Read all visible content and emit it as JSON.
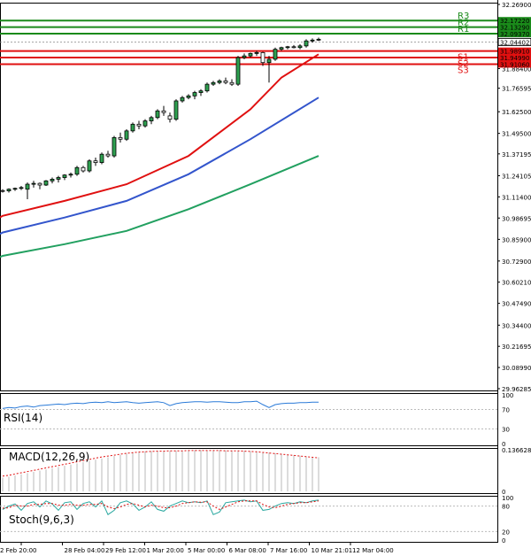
{
  "chart_data": {
    "type": "candlestick",
    "main": {
      "y_ticks": [
        "32.26900",
        "32.12500",
        "31.98400",
        "31.88400",
        "31.76595",
        "31.62500",
        "31.49500",
        "31.37195",
        "31.24105",
        "31.11400",
        "30.98695",
        "30.85900",
        "30.72900",
        "30.60210",
        "30.47490",
        "30.34400",
        "30.21695",
        "30.08990",
        "29.96285"
      ],
      "ylim": [
        29.96285,
        32.269
      ],
      "current_price": "32.04402",
      "levels": [
        {
          "name": "R3",
          "value": "32.17220",
          "color": "#1a8a1a"
        },
        {
          "name": "R2",
          "value": "32.13290",
          "color": "#1a8a1a"
        },
        {
          "name": "R1",
          "value": "32.09370",
          "color": "#1a8a1a"
        },
        {
          "name": "S1",
          "value": "31.98910",
          "color": "#e01010"
        },
        {
          "name": "S2",
          "value": "31.94990",
          "color": "#e01010"
        },
        {
          "name": "S3",
          "value": "31.91060",
          "color": "#e01010"
        }
      ],
      "candles": [
        [
          31.152,
          31.16,
          31.14,
          31.15
        ],
        [
          31.15,
          31.165,
          31.14,
          31.16
        ],
        [
          31.16,
          31.17,
          31.15,
          31.165
        ],
        [
          31.165,
          31.18,
          31.155,
          31.17
        ],
        [
          31.16,
          31.2,
          31.1,
          31.19
        ],
        [
          31.19,
          31.21,
          31.17,
          31.195
        ],
        [
          31.195,
          31.2,
          31.16,
          31.185
        ],
        [
          31.185,
          31.215,
          31.18,
          31.21
        ],
        [
          31.21,
          31.23,
          31.195,
          31.22
        ],
        [
          31.22,
          31.24,
          31.2,
          31.23
        ],
        [
          31.23,
          31.25,
          31.215,
          31.245
        ],
        [
          31.245,
          31.26,
          31.23,
          31.25
        ],
        [
          31.25,
          31.3,
          31.24,
          31.29
        ],
        [
          31.29,
          31.3,
          31.26,
          31.27
        ],
        [
          31.27,
          31.34,
          31.26,
          31.33
        ],
        [
          31.33,
          31.35,
          31.3,
          31.32
        ],
        [
          31.32,
          31.38,
          31.31,
          31.37
        ],
        [
          31.37,
          31.39,
          31.35,
          31.36
        ],
        [
          31.36,
          31.48,
          31.35,
          31.47
        ],
        [
          31.47,
          31.5,
          31.44,
          31.46
        ],
        [
          31.46,
          31.52,
          31.45,
          31.51
        ],
        [
          31.51,
          31.56,
          31.5,
          31.55
        ],
        [
          31.55,
          31.57,
          31.52,
          31.54
        ],
        [
          31.54,
          31.58,
          31.53,
          31.57
        ],
        [
          31.57,
          31.6,
          31.55,
          31.59
        ],
        [
          31.59,
          31.64,
          31.58,
          31.63
        ],
        [
          31.63,
          31.66,
          31.6,
          31.62
        ],
        [
          31.6,
          31.62,
          31.56,
          31.58
        ],
        [
          31.58,
          31.7,
          31.57,
          31.69
        ],
        [
          31.69,
          31.72,
          31.68,
          31.71
        ],
        [
          31.71,
          31.73,
          31.7,
          31.72
        ],
        [
          31.72,
          31.75,
          31.7,
          31.74
        ],
        [
          31.74,
          31.76,
          31.72,
          31.75
        ],
        [
          31.75,
          31.8,
          31.74,
          31.79
        ],
        [
          31.79,
          31.81,
          31.78,
          31.8
        ],
        [
          31.8,
          31.82,
          31.79,
          31.81
        ],
        [
          31.81,
          31.83,
          31.79,
          31.8
        ],
        [
          31.8,
          31.82,
          31.78,
          31.79
        ],
        [
          31.79,
          31.96,
          31.78,
          31.95
        ],
        [
          31.95,
          31.975,
          31.94,
          31.96
        ],
        [
          31.96,
          31.98,
          31.95,
          31.975
        ],
        [
          31.975,
          31.99,
          31.96,
          31.98
        ],
        [
          31.98,
          31.985,
          31.9,
          31.92
        ],
        [
          31.92,
          31.96,
          31.8,
          31.94
        ],
        [
          31.94,
          32.01,
          31.93,
          32.0
        ],
        [
          32.0,
          32.015,
          31.99,
          32.01
        ],
        [
          32.01,
          32.02,
          32.0,
          32.015
        ],
        [
          32.015,
          32.025,
          32.005,
          32.01
        ],
        [
          32.01,
          32.03,
          32.0,
          32.02
        ],
        [
          32.02,
          32.06,
          32.01,
          32.05
        ],
        [
          32.05,
          32.065,
          32.04,
          32.055
        ],
        [
          32.055,
          32.07,
          32.05,
          32.06
        ]
      ],
      "ma_fast": {
        "color": "#e01010",
        "points": [
          [
            0,
            31.0
          ],
          [
            10,
            31.09
          ],
          [
            20,
            31.19
          ],
          [
            30,
            31.36
          ],
          [
            40,
            31.64
          ],
          [
            45,
            31.83
          ],
          [
            51,
            31.97
          ]
        ]
      },
      "ma_mid": {
        "color": "#3355cc",
        "points": [
          [
            0,
            30.9
          ],
          [
            10,
            30.99
          ],
          [
            20,
            31.09
          ],
          [
            30,
            31.25
          ],
          [
            40,
            31.46
          ],
          [
            51,
            31.71
          ]
        ]
      },
      "ma_slow": {
        "color": "#22a060",
        "points": [
          [
            0,
            30.76
          ],
          [
            10,
            30.83
          ],
          [
            20,
            30.91
          ],
          [
            30,
            31.04
          ],
          [
            40,
            31.19
          ],
          [
            51,
            31.36
          ]
        ]
      }
    },
    "rsi": {
      "label": "RSI(14)",
      "ticks": [
        "100",
        "70",
        "30",
        "0"
      ],
      "ylim": [
        0,
        100
      ],
      "color": "#2a7ad8",
      "values": [
        72,
        74,
        73,
        76,
        77,
        75,
        78,
        79,
        80,
        81,
        80,
        82,
        83,
        82,
        84,
        85,
        84,
        86,
        84,
        85,
        86,
        84,
        83,
        84,
        85,
        86,
        84,
        78,
        82,
        84,
        85,
        86,
        86,
        85,
        86,
        86,
        85,
        84,
        84,
        86,
        86,
        87,
        80,
        74,
        80,
        82,
        83,
        83,
        84,
        84,
        85,
        85
      ]
    },
    "macd": {
      "label": "MACD(12,26,9)",
      "ticks": [
        "0.136628",
        "0"
      ],
      "ylim": [
        0,
        0.136628
      ],
      "signal_color": "#e01010",
      "hist": [
        0.045,
        0.048,
        0.052,
        0.056,
        0.06,
        0.064,
        0.068,
        0.072,
        0.076,
        0.08,
        0.084,
        0.088,
        0.092,
        0.096,
        0.1,
        0.104,
        0.108,
        0.112,
        0.116,
        0.12,
        0.124,
        0.127,
        0.129,
        0.131,
        0.132,
        0.133,
        0.133,
        0.133,
        0.133,
        0.134,
        0.135,
        0.135,
        0.135,
        0.135,
        0.135,
        0.135,
        0.134,
        0.134,
        0.134,
        0.133,
        0.132,
        0.131,
        0.129,
        0.127,
        0.125,
        0.123,
        0.121,
        0.119,
        0.117,
        0.115,
        0.113,
        0.112
      ],
      "signal": [
        0.05,
        0.053,
        0.057,
        0.061,
        0.065,
        0.069,
        0.073,
        0.077,
        0.081,
        0.085,
        0.089,
        0.093,
        0.097,
        0.101,
        0.105,
        0.109,
        0.113,
        0.116,
        0.119,
        0.122,
        0.125,
        0.127,
        0.129,
        0.13,
        0.131,
        0.132,
        0.132,
        0.133,
        0.133,
        0.133,
        0.134,
        0.134,
        0.134,
        0.134,
        0.134,
        0.134,
        0.133,
        0.133,
        0.133,
        0.132,
        0.131,
        0.13,
        0.128,
        0.126,
        0.124,
        0.122,
        0.12,
        0.118,
        0.116,
        0.114,
        0.112,
        0.11
      ]
    },
    "stoch": {
      "label": "Stoch(9,6,3)",
      "ticks": [
        "100",
        "80",
        "20",
        "0"
      ],
      "ylim": [
        0,
        100
      ],
      "k_color": "#2aa8a0",
      "d_color": "#e01010",
      "k": [
        72,
        80,
        85,
        70,
        86,
        90,
        78,
        92,
        85,
        70,
        88,
        90,
        72,
        86,
        90,
        78,
        92,
        60,
        70,
        88,
        92,
        85,
        70,
        78,
        90,
        72,
        68,
        80,
        86,
        92,
        88,
        90,
        88,
        92,
        60,
        66,
        88,
        90,
        92,
        94,
        90,
        92,
        70,
        72,
        80,
        86,
        88,
        86,
        90,
        88,
        92,
        94
      ],
      "d": [
        75,
        76,
        82,
        80,
        80,
        84,
        84,
        86,
        86,
        82,
        82,
        84,
        82,
        82,
        84,
        84,
        86,
        78,
        74,
        78,
        84,
        86,
        82,
        78,
        82,
        80,
        76,
        76,
        80,
        86,
        88,
        90,
        89,
        90,
        80,
        72,
        78,
        84,
        90,
        92,
        92,
        92,
        84,
        78,
        76,
        80,
        84,
        86,
        88,
        88,
        90,
        92
      ]
    },
    "x_ticks": [
      "2 Feb 20:00",
      "28 Feb 04:00",
      "29 Feb 12:00",
      "1 Mar 20:00",
      "5 Mar 00:00",
      "6 Mar 08:00",
      "7 Mar 16:00",
      "10 Mar 21:01",
      "12 Mar 04:00"
    ]
  }
}
